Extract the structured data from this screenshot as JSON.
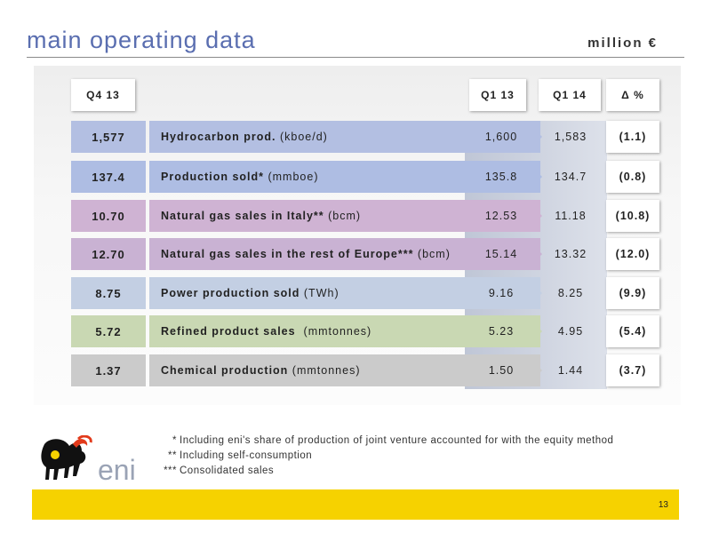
{
  "header": {
    "title": "main operating data",
    "unit": "million €"
  },
  "columns": {
    "q4": "Q4 13",
    "q1_13": "Q1 13",
    "q1_14": "Q1 14",
    "delta": "Δ %"
  },
  "rows": [
    {
      "q4": "1,577",
      "label": "Hydrocarbon prod.",
      "unit": " (kboe/d)",
      "q1_13": "1,600",
      "q1_14": "1,583",
      "delta": "(1.1)",
      "color": "#b3bfe2"
    },
    {
      "q4": "137.4",
      "label": "Production  sold*",
      "unit": " (mmboe)",
      "q1_13": "135.8",
      "q1_14": "134.7",
      "delta": "(0.8)",
      "color": "#aebde3"
    },
    {
      "q4": "10.70",
      "label": "Natural gas sales in Italy**",
      "unit": " (bcm)",
      "q1_13": "12.53",
      "q1_14": "11.18",
      "delta": "(10.8)",
      "color": "#cfb3d3"
    },
    {
      "q4": "12.70",
      "label": "Natural gas sales in the rest of Europe***",
      "unit": " (bcm)",
      "q1_13": "15.14",
      "q1_14": "13.32",
      "delta": "(12.0)",
      "color": "#c9b2d3"
    },
    {
      "q4": "8.75",
      "label": "Power production sold",
      "unit": " (TWh)",
      "q1_13": "9.16",
      "q1_14": "8.25",
      "delta": "(9.9)",
      "color": "#c3cfe3"
    },
    {
      "q4": "5.72",
      "label": "Refined product sales",
      "unit": "  (mmtonnes)",
      "q1_13": "5.23",
      "q1_14": "4.95",
      "delta": "(5.4)",
      "color": "#c9d8b3"
    },
    {
      "q4": "1.37",
      "label": "Chemical production",
      "unit": " (mmtonnes)",
      "q1_13": "1.50",
      "q1_14": "1.44",
      "delta": "(3.7)",
      "color": "#cbcbcb"
    }
  ],
  "notes": [
    {
      "mark": "*",
      "text": "Including eni's share of production of joint venture accounted for with the equity method"
    },
    {
      "mark": "**",
      "text": "Including self-consumption"
    },
    {
      "mark": "***",
      "text": "Consolidated sales"
    }
  ],
  "logo": {
    "text": "eni"
  },
  "footer": {
    "page": "13",
    "bar_color": "#f6d200"
  }
}
